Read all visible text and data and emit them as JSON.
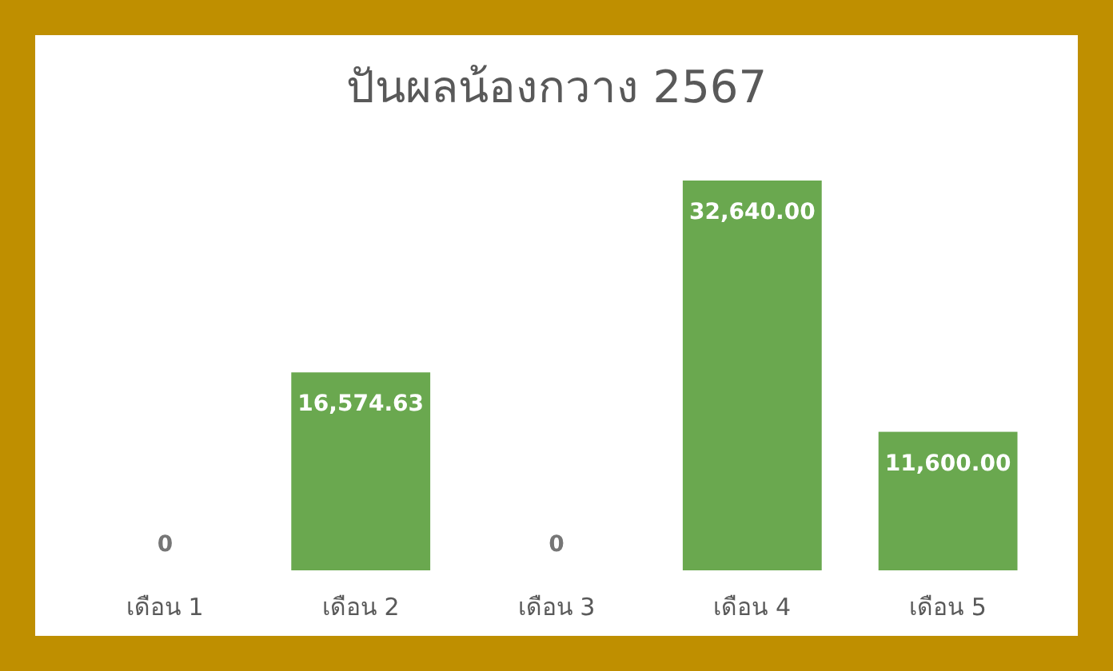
{
  "chart_data": {
    "type": "bar",
    "title": "ปันผลน้องกวาง 2567",
    "categories": [
      "เดือน 1",
      "เดือน 2",
      "เดือน 3",
      "เดือน 4",
      "เดือน 5"
    ],
    "values": [
      0,
      16574.63,
      0,
      32640,
      11600
    ],
    "value_labels": [
      "0",
      "16,574.63",
      "0",
      "32,640.00",
      "11,600.00"
    ],
    "color": "#6aa84f"
  }
}
